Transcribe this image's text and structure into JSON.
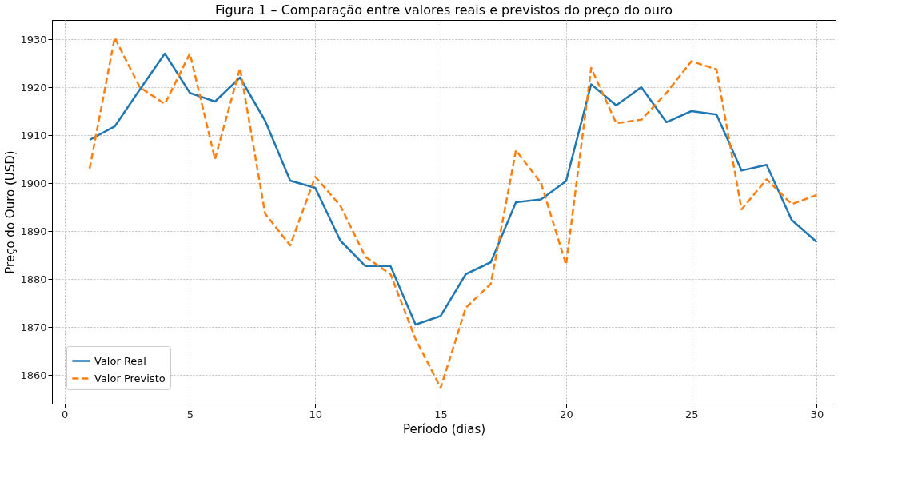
{
  "chart_data": {
    "type": "line",
    "title": "Figura 1 – Comparação entre valores reais e previstos do preço do ouro",
    "xlabel": "Período (dias)",
    "ylabel": "Preço do Ouro (USD)",
    "x": [
      1,
      2,
      3,
      4,
      5,
      6,
      7,
      8,
      9,
      10,
      11,
      12,
      13,
      14,
      15,
      16,
      17,
      18,
      19,
      20,
      21,
      22,
      23,
      24,
      25,
      26,
      27,
      28,
      29,
      30
    ],
    "series": [
      {
        "name": "Valor Real",
        "color": "#1f77b4",
        "line_style": "solid",
        "values": [
          1909,
          1911.8,
          1919.5,
          1927,
          1918.8,
          1917,
          1922,
          1913,
          1900.5,
          1899,
          1888,
          1882.7,
          1882.7,
          1870.5,
          1872.3,
          1881,
          1883.5,
          1896,
          1896.6,
          1900.4,
          1920.6,
          1916.2,
          1920,
          1912.7,
          1915,
          1914.3,
          1902.6,
          1903.8,
          1892.3,
          1887.7
        ]
      },
      {
        "name": "Valor Previsto",
        "color": "#ff7f0e",
        "line_style": "dashed",
        "values": [
          1903,
          1930.3,
          1920,
          1916.5,
          1927,
          1905,
          1924,
          1893.6,
          1887,
          1901.3,
          1895.3,
          1884.6,
          1881,
          1867.5,
          1857.3,
          1874,
          1879,
          1906.8,
          1900,
          1883,
          1924,
          1912.5,
          1913.2,
          1918.8,
          1925.4,
          1923.7,
          1894.5,
          1900.8,
          1895.6,
          1897.5
        ]
      }
    ],
    "xlim": [
      -0.5,
      30.75
    ],
    "xticks": [
      0,
      5,
      10,
      15,
      20,
      25,
      30
    ],
    "ylim": [
      1854,
      1934
    ],
    "yticks": [
      1860,
      1870,
      1880,
      1890,
      1900,
      1910,
      1920,
      1930
    ],
    "grid": true,
    "legend": "bottom left",
    "marker": "none"
  }
}
